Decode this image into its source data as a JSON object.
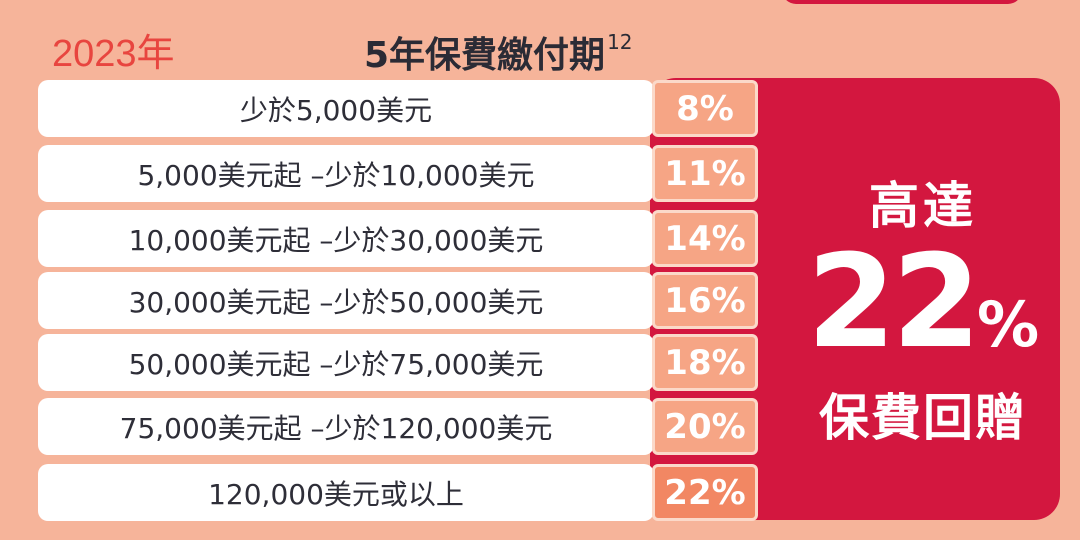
{
  "year": "2023年",
  "title": "5年保費繳付期",
  "title_superscript": "12",
  "rows": [
    {
      "label": "少於5,000美元",
      "rate": "8%"
    },
    {
      "label": "5,000美元起 –少於10,000美元",
      "rate": "11%"
    },
    {
      "label": "10,000美元起 –少於30,000美元",
      "rate": "14%"
    },
    {
      "label": "30,000美元起 –少於50,000美元",
      "rate": "16%"
    },
    {
      "label": "50,000美元起 –少於75,000美元",
      "rate": "18%"
    },
    {
      "label": "75,000美元起 –少於120,000美元",
      "rate": "20%"
    },
    {
      "label": "120,000美元或以上",
      "rate": "22%"
    }
  ],
  "promo": {
    "top": "高達",
    "number": "22",
    "percent": "%",
    "bottom": "保費回贈"
  },
  "colors": {
    "background": "#f6b49a",
    "accent": "#d3173f",
    "rate_cell": "#f6a585",
    "year_text": "#e8453f"
  }
}
